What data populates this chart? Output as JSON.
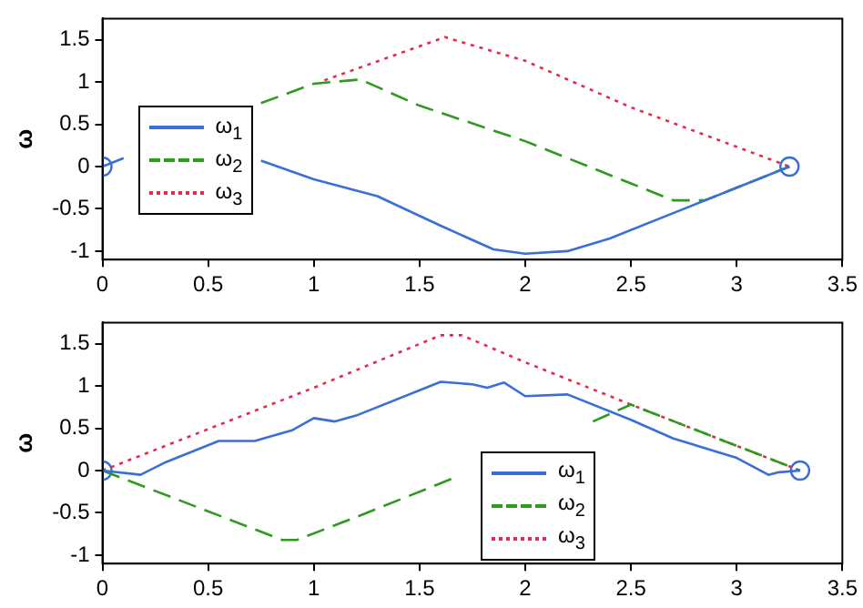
{
  "chart_data": [
    {
      "type": "line",
      "ylabel": "ω",
      "xlim": [
        0,
        3.5
      ],
      "xticks": [
        0,
        0.5,
        1,
        1.5,
        2,
        2.5,
        3,
        3.5
      ],
      "ylim": [
        -1.1,
        1.75
      ],
      "yticks": [
        -1,
        -0.5,
        0,
        0.5,
        1,
        1.5
      ],
      "grid": false,
      "legend": "left",
      "series": [
        {
          "name": "ω$_{1}$",
          "color": "#3a6fd8",
          "line_style": "solid",
          "marker": "none",
          "x": [
            0,
            0.1,
            0.45,
            0.75,
            1,
            1.3,
            1.6,
            1.85,
            2,
            2.2,
            2.4,
            2.7,
            3,
            3.25
          ],
          "values": [
            0,
            0.1,
            null,
            0.07,
            -0.15,
            -0.35,
            -0.7,
            -0.98,
            -1.03,
            -1,
            -0.85,
            -0.55,
            -0.25,
            0
          ]
        },
        {
          "name": "ω$_{2}$",
          "color": "#2e9a1e",
          "line_style": "dashed",
          "marker": "none",
          "x": [
            0.75,
            1,
            1.22,
            1.5,
            2,
            2.5,
            2.7,
            2.85,
            3.25
          ],
          "values": [
            0.75,
            0.98,
            1.03,
            0.72,
            0.3,
            -0.2,
            -0.4,
            -0.4,
            0
          ]
        },
        {
          "name": "ω$_{3}$",
          "color": "#e8284a",
          "line_style": "dotted",
          "marker": "none",
          "x": [
            1.05,
            1.62,
            2,
            2.5,
            3.25
          ],
          "values": [
            1.02,
            1.53,
            1.25,
            0.7,
            0
          ]
        },
        {
          "type": "scatter",
          "color": "#3a6fd8",
          "marker": "circle",
          "x": [
            0,
            3.25
          ],
          "values": [
            0,
            0
          ]
        }
      ]
    },
    {
      "type": "line",
      "ylabel": "ω",
      "xlim": [
        0,
        3.5
      ],
      "xticks": [
        0,
        0.5,
        1,
        1.5,
        2,
        2.5,
        3,
        3.5
      ],
      "ylim": [
        -1.1,
        1.75
      ],
      "yticks": [
        -1,
        -0.5,
        0,
        0.5,
        1,
        1.5
      ],
      "grid": false,
      "legend": "bottom",
      "series": [
        {
          "name": "ω$_{1}$",
          "color": "#3a6fd8",
          "line_style": "solid",
          "marker": "none",
          "x": [
            0,
            0.18,
            0.3,
            0.55,
            0.72,
            0.9,
            1,
            1.1,
            1.2,
            1.6,
            1.75,
            1.82,
            1.9,
            2,
            2.2,
            2.5,
            2.7,
            3,
            3.15,
            3.2,
            3.3
          ],
          "values": [
            0,
            -0.05,
            0.1,
            0.35,
            0.35,
            0.48,
            0.62,
            0.58,
            0.65,
            1.05,
            1.02,
            0.98,
            1.04,
            0.88,
            0.9,
            0.6,
            0.38,
            0.15,
            -0.05,
            -0.02,
            0
          ]
        },
        {
          "name": "ω$_{2}$",
          "color": "#2e9a1e",
          "line_style": "dashed",
          "marker": "none",
          "x": [
            0,
            0.85,
            0.92,
            1.2,
            1.65,
            2,
            2.32,
            2.5,
            3.3
          ],
          "values": [
            0,
            -0.82,
            -0.82,
            -0.55,
            -0.1,
            null,
            0.58,
            0.78,
            0
          ]
        },
        {
          "name": "ω$_{3}$",
          "color": "#e8284a",
          "line_style": "dotted",
          "marker": "none",
          "x": [
            0,
            1,
            1.6,
            1.7,
            2,
            2.5,
            3.3
          ],
          "values": [
            0,
            0.98,
            1.6,
            1.6,
            1.28,
            0.78,
            0
          ]
        },
        {
          "type": "scatter",
          "color": "#3a6fd8",
          "marker": "circle",
          "x": [
            0,
            3.3
          ],
          "values": [
            0,
            0
          ]
        }
      ]
    }
  ]
}
